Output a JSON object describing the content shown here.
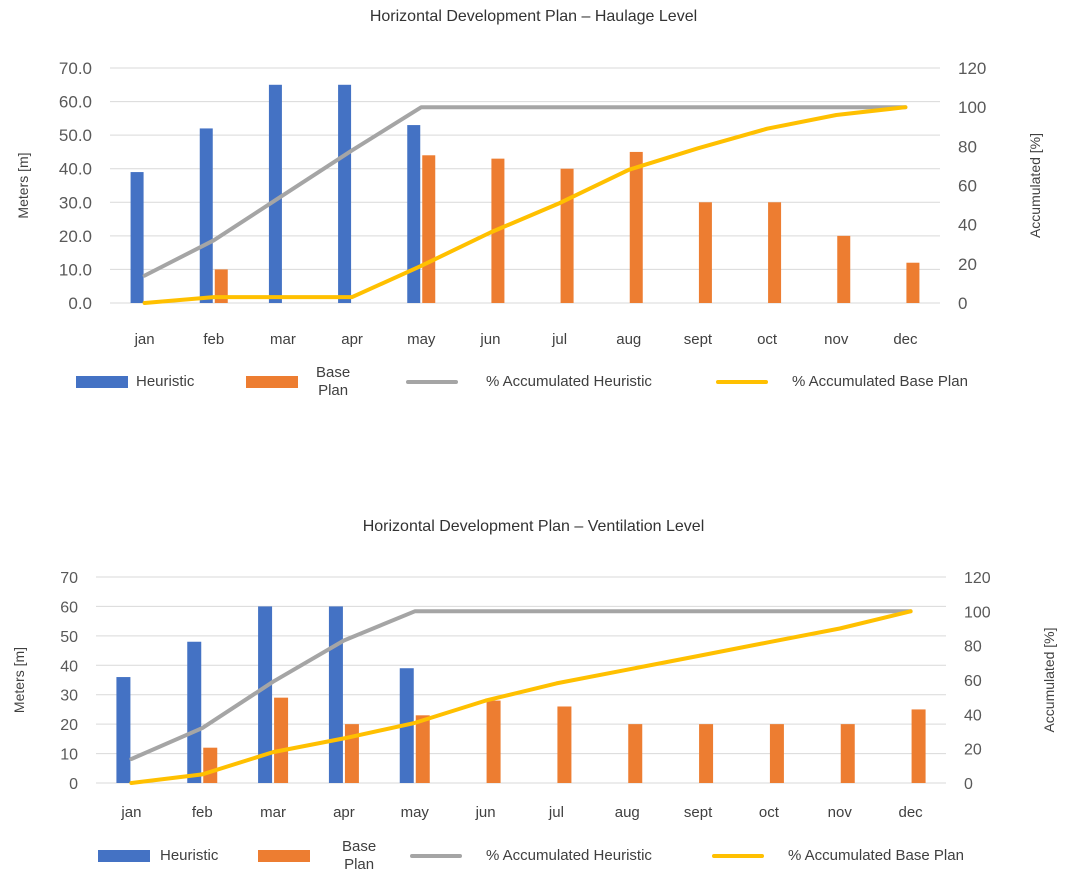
{
  "chart_data": [
    {
      "type": "bar",
      "title": "Horizontal Development Plan – Haulage Level",
      "ylabel": "Meters [m]",
      "y2label": "Accumulated [%]",
      "categories": [
        "jan",
        "feb",
        "mar",
        "apr",
        "may",
        "jun",
        "jul",
        "aug",
        "sept",
        "oct",
        "nov",
        "dec"
      ],
      "ylim": [
        0,
        70
      ],
      "y_ticks": [
        "0.0",
        "10.0",
        "20.0",
        "30.0",
        "40.0",
        "50.0",
        "60.0",
        "70.0"
      ],
      "y2lim": [
        0,
        120
      ],
      "y2_ticks": [
        "0",
        "20",
        "40",
        "60",
        "80",
        "100",
        "120"
      ],
      "grid": true,
      "legend_position": "bottom",
      "series": [
        {
          "name": "Heuristic",
          "kind": "bar",
          "axis": "left",
          "color": "#4472C4",
          "values": [
            39,
            52,
            65,
            65,
            53,
            null,
            null,
            null,
            null,
            null,
            null,
            null
          ]
        },
        {
          "name": "Base Plan",
          "kind": "bar",
          "axis": "left",
          "color": "#ED7D31",
          "values": [
            null,
            10,
            null,
            null,
            44,
            43,
            40,
            45,
            30,
            30,
            20,
            12
          ]
        },
        {
          "name": "% Accumulated Heuristic",
          "kind": "line",
          "axis": "right",
          "color": "#A5A5A5",
          "values": [
            14,
            32,
            55,
            78,
            100,
            100,
            100,
            100,
            100,
            100,
            100,
            100
          ]
        },
        {
          "name": "% Accumulated Base Plan",
          "kind": "line",
          "axis": "right",
          "color": "#FFC000",
          "values": [
            0,
            3,
            3,
            3,
            19,
            36,
            51,
            68,
            79,
            89,
            96,
            100
          ]
        }
      ]
    },
    {
      "type": "bar",
      "title": "Horizontal Development Plan – Ventilation Level",
      "ylabel": "Meters [m]",
      "y2label": "Accumulated [%]",
      "categories": [
        "jan",
        "feb",
        "mar",
        "apr",
        "may",
        "jun",
        "jul",
        "aug",
        "sept",
        "oct",
        "nov",
        "dec"
      ],
      "ylim": [
        0,
        70
      ],
      "y_ticks": [
        "0",
        "10",
        "20",
        "30",
        "40",
        "50",
        "60",
        "70"
      ],
      "y2lim": [
        0,
        120
      ],
      "y2_ticks": [
        "0",
        "20",
        "40",
        "60",
        "80",
        "100",
        "120"
      ],
      "grid": true,
      "legend_position": "bottom",
      "series": [
        {
          "name": "Heuristic",
          "kind": "bar",
          "axis": "left",
          "color": "#4472C4",
          "values": [
            36,
            48,
            60,
            60,
            39,
            null,
            null,
            null,
            null,
            null,
            null,
            null
          ]
        },
        {
          "name": "Base Plan",
          "kind": "bar",
          "axis": "left",
          "color": "#ED7D31",
          "values": [
            null,
            12,
            29,
            20,
            23,
            28,
            26,
            20,
            20,
            20,
            20,
            25
          ]
        },
        {
          "name": "% Accumulated Heuristic",
          "kind": "line",
          "axis": "right",
          "color": "#A5A5A5",
          "values": [
            14,
            32,
            59,
            83,
            100,
            100,
            100,
            100,
            100,
            100,
            100,
            100
          ]
        },
        {
          "name": "% Accumulated Base Plan",
          "kind": "line",
          "axis": "right",
          "color": "#FFC000",
          "values": [
            0,
            5,
            18,
            26,
            35,
            48,
            58,
            66,
            74,
            82,
            90,
            100
          ]
        }
      ]
    }
  ],
  "legend": {
    "heuristic": "Heuristic",
    "base_plan_line1": "Base",
    "base_plan_line2": "Plan",
    "acc_heuristic": "% Accumulated Heuristic",
    "acc_base_plan": "% Accumulated Base Plan"
  }
}
